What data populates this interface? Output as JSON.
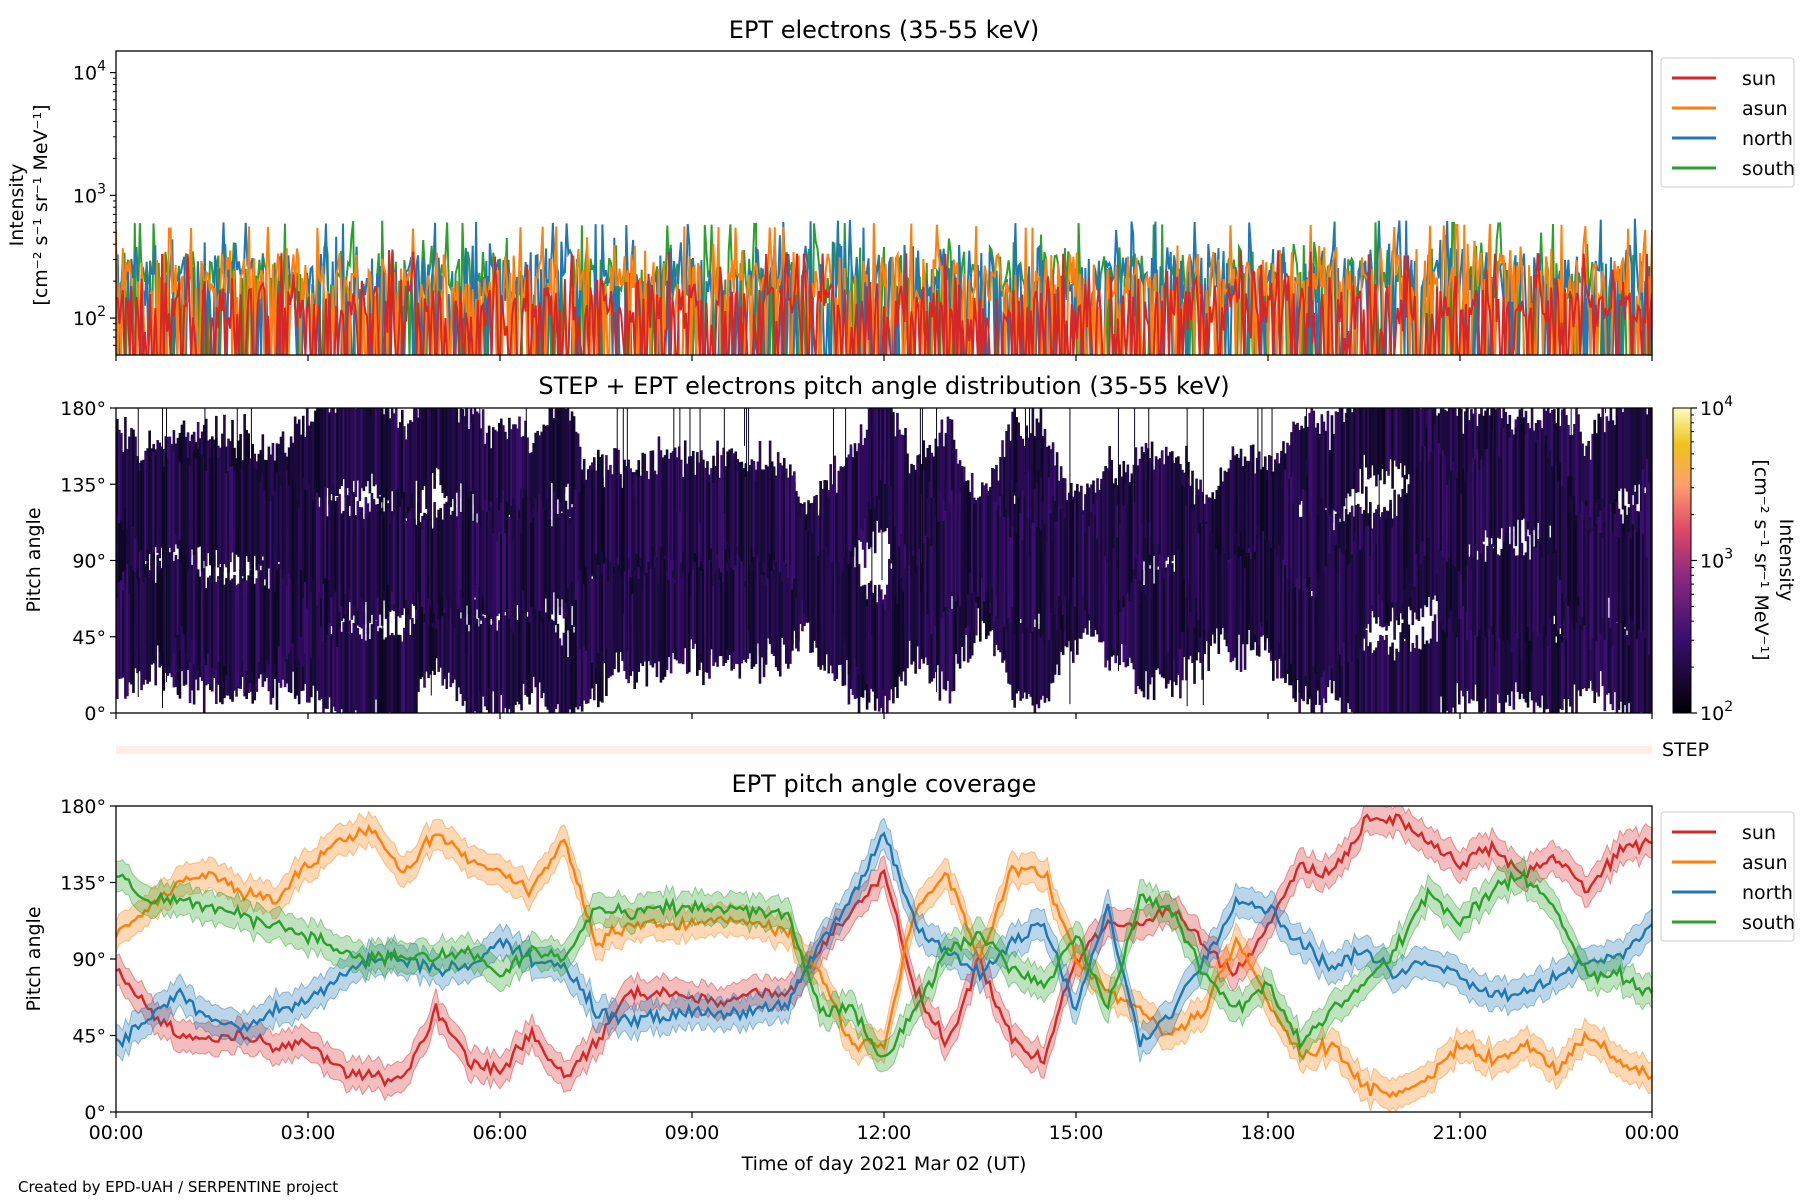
{
  "figure": {
    "credit": "Created by EPD-UAH / SERPENTINE project",
    "xlabel": "Time of day 2021 Mar 02 (UT)",
    "time_ticks": [
      "00:00",
      "03:00",
      "06:00",
      "09:00",
      "12:00",
      "15:00",
      "18:00",
      "21:00",
      "00:00"
    ],
    "series_colors": {
      "sun": "#d62728",
      "asun": "#ff7f0e",
      "north": "#1f77b4",
      "south": "#2ca02c"
    }
  },
  "panel1": {
    "title": "EPT electrons (35-55 keV)",
    "ylabel_1": "Intensity",
    "ylabel_2": "[cm⁻² s⁻¹ sr⁻¹ MeV⁻¹]"
  },
  "panel2": {
    "title": "STEP + EPT electrons pitch angle distribution (35-55 keV)",
    "ylabel": "Pitch angle",
    "colorbar_label": "Intensity",
    "colorbar_units": "[cm⁻² s⁻¹ sr⁻¹ MeV⁻¹]"
  },
  "step_strip": {
    "label": "STEP"
  },
  "panel3": {
    "title": "EPT pitch angle coverage",
    "ylabel": "Pitch angle"
  },
  "chart_data": [
    {
      "type": "line",
      "title": "EPT electrons (35-55 keV)",
      "xlabel": "",
      "ylabel": "Intensity [cm⁻² s⁻¹ sr⁻¹ MeV⁻¹]",
      "yscale": "log",
      "ylim": [
        50,
        15000
      ],
      "yticks": [
        "10^2",
        "10^3",
        "10^4"
      ],
      "xlim": [
        "00:00",
        "24:00"
      ],
      "legend": "top-right (outside)",
      "x_hours": [
        0,
        2,
        4,
        6,
        8,
        10,
        12,
        14,
        16,
        18,
        20,
        22,
        24
      ],
      "series": [
        {
          "name": "sun",
          "color": "#d62728",
          "values": [
            130,
            125,
            140,
            120,
            135,
            128,
            130,
            126,
            132,
            138,
            124,
            130,
            128
          ]
        },
        {
          "name": "asun",
          "color": "#ff7f0e",
          "values": [
            200,
            215,
            205,
            210,
            220,
            208,
            230,
            210,
            205,
            225,
            212,
            230,
            200
          ]
        },
        {
          "name": "north",
          "color": "#1f77b4",
          "values": [
            240,
            230,
            225,
            235,
            220,
            230,
            245,
            228,
            236,
            230,
            240,
            235,
            250
          ]
        },
        {
          "name": "south",
          "color": "#2ca02c",
          "values": [
            230,
            220,
            240,
            225,
            215,
            225,
            230,
            235,
            222,
            228,
            232,
            226,
            220
          ]
        }
      ]
    },
    {
      "type": "heatmap",
      "title": "STEP + EPT electrons pitch angle distribution (35-55 keV)",
      "xlabel": "",
      "ylabel": "Pitch angle",
      "ylim": [
        0,
        180
      ],
      "yticks": [
        "0°",
        "45°",
        "90°",
        "135°",
        "180°"
      ],
      "xlim": [
        "00:00",
        "24:00"
      ],
      "colorbar": {
        "label": "Intensity [cm⁻² s⁻¹ sr⁻¹ MeV⁻¹]",
        "scale": "log",
        "range": [
          100,
          10000
        ],
        "ticks": [
          "10^2",
          "10^3",
          "10^4"
        ]
      },
      "note_values": "intensities mostly near 10^2 with white gaps where sectors do not cover the pitch angle"
    },
    {
      "type": "line",
      "title": "EPT pitch angle coverage",
      "xlabel": "Time of day 2021 Mar 02 (UT)",
      "ylabel": "Pitch angle",
      "ylim": [
        0,
        180
      ],
      "yticks": [
        "0°",
        "45°",
        "90°",
        "135°",
        "180°"
      ],
      "xlim": [
        "00:00",
        "24:00"
      ],
      "legend": "top-right (outside)",
      "x_hours": [
        0,
        0.5,
        1,
        1.5,
        2,
        2.5,
        3,
        3.5,
        4,
        4.5,
        5,
        5.5,
        6,
        6.5,
        7,
        7.5,
        8,
        8.5,
        9,
        9.5,
        10,
        10.5,
        11,
        11.5,
        12,
        12.5,
        13,
        13.5,
        14,
        14.5,
        15,
        15.5,
        16,
        16.5,
        17,
        17.5,
        18,
        18.5,
        19,
        19.5,
        20,
        20.5,
        21,
        21.5,
        22,
        22.5,
        23,
        23.5,
        24
      ],
      "series": [
        {
          "name": "sun",
          "color": "#d62728",
          "values": [
            85,
            60,
            45,
            42,
            45,
            40,
            40,
            25,
            20,
            20,
            60,
            30,
            25,
            45,
            20,
            40,
            70,
            70,
            68,
            65,
            70,
            70,
            95,
            120,
            140,
            70,
            40,
            90,
            40,
            30,
            90,
            110,
            110,
            120,
            100,
            80,
            110,
            145,
            140,
            170,
            175,
            160,
            145,
            155,
            140,
            150,
            130,
            155,
            160
          ]
        },
        {
          "name": "asun",
          "color": "#ff7f0e",
          "values": [
            105,
            120,
            135,
            140,
            130,
            125,
            145,
            160,
            165,
            140,
            165,
            150,
            140,
            130,
            160,
            100,
            110,
            110,
            110,
            115,
            112,
            105,
            80,
            40,
            40,
            120,
            140,
            90,
            145,
            140,
            90,
            70,
            60,
            45,
            60,
            100,
            65,
            35,
            40,
            15,
            10,
            20,
            40,
            30,
            40,
            25,
            45,
            30,
            20
          ]
        },
        {
          "name": "north",
          "color": "#1f77b4",
          "values": [
            40,
            55,
            70,
            55,
            50,
            60,
            65,
            80,
            90,
            90,
            85,
            85,
            100,
            90,
            85,
            60,
            55,
            55,
            60,
            58,
            60,
            62,
            100,
            125,
            165,
            110,
            95,
            80,
            100,
            110,
            60,
            120,
            40,
            60,
            90,
            125,
            120,
            100,
            85,
            95,
            80,
            90,
            80,
            70,
            70,
            80,
            90,
            90,
            110
          ]
        },
        {
          "name": "south",
          "color": "#2ca02c",
          "values": [
            140,
            125,
            125,
            120,
            115,
            110,
            105,
            95,
            90,
            92,
            90,
            95,
            80,
            95,
            90,
            120,
            115,
            120,
            120,
            120,
            118,
            115,
            60,
            60,
            30,
            60,
            95,
            105,
            85,
            75,
            105,
            60,
            125,
            120,
            80,
            60,
            75,
            40,
            60,
            75,
            95,
            130,
            110,
            130,
            140,
            120,
            80,
            80,
            70
          ]
        }
      ],
      "bands": "shaded ±8° envelope around each series"
    }
  ]
}
